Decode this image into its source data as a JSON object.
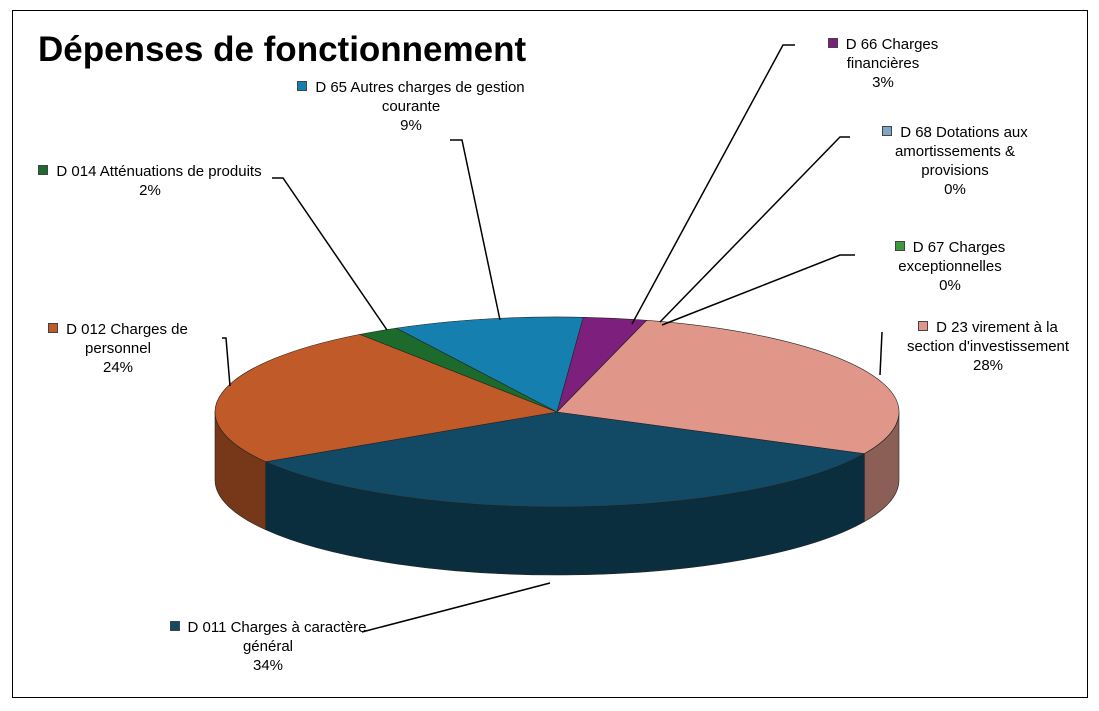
{
  "chart_data": {
    "type": "pie",
    "title": "Dépenses de fonctionnement",
    "categories": [
      "D 011 Charges à caractère général",
      "D 012 Charges de personnel",
      "D 014 Atténuations de produits",
      "D 65 Autres charges de gestion courante",
      "D 66 Charges financières",
      "D 68 Dotations aux amortissements & provisions",
      "D 67 Charges exceptionnelles",
      "D 23 virement à la section d'investissement"
    ],
    "values": [
      34,
      24,
      2,
      9,
      3,
      0,
      0,
      28
    ],
    "value_labels": [
      "34%",
      "24%",
      "2%",
      "9%",
      "3%",
      "0%",
      "0%",
      "28%"
    ],
    "colors": [
      "#124a66",
      "#c05a28",
      "#1d6b2c",
      "#1580b0",
      "#7d1f7d",
      "#7fa6c4",
      "#3c9a3c",
      "#e0978a"
    ]
  }
}
